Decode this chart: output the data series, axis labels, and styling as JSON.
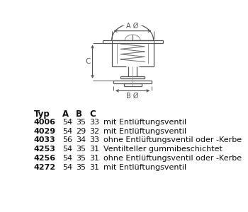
{
  "background_color": "#ffffff",
  "table_data": [
    [
      "4006",
      "54",
      "35",
      "33",
      "mit Entlüftungsventil"
    ],
    [
      "4029",
      "54",
      "29",
      "32",
      "mit Entlüftungsventil"
    ],
    [
      "4033",
      "56",
      "34",
      "33",
      "ohne Entlüftungsventil oder -Kerbe"
    ],
    [
      "4253",
      "54",
      "35",
      "31",
      "Ventilteller gummibeschichtet"
    ],
    [
      "4256",
      "54",
      "35",
      "31",
      "ohne Entlüftungsventil oder -Kerbe"
    ],
    [
      "4272",
      "54",
      "35",
      "31",
      "mit Entlüftungsventil"
    ]
  ],
  "line_color": "#555555",
  "dim_color": "#555555",
  "text_color": "#111111"
}
